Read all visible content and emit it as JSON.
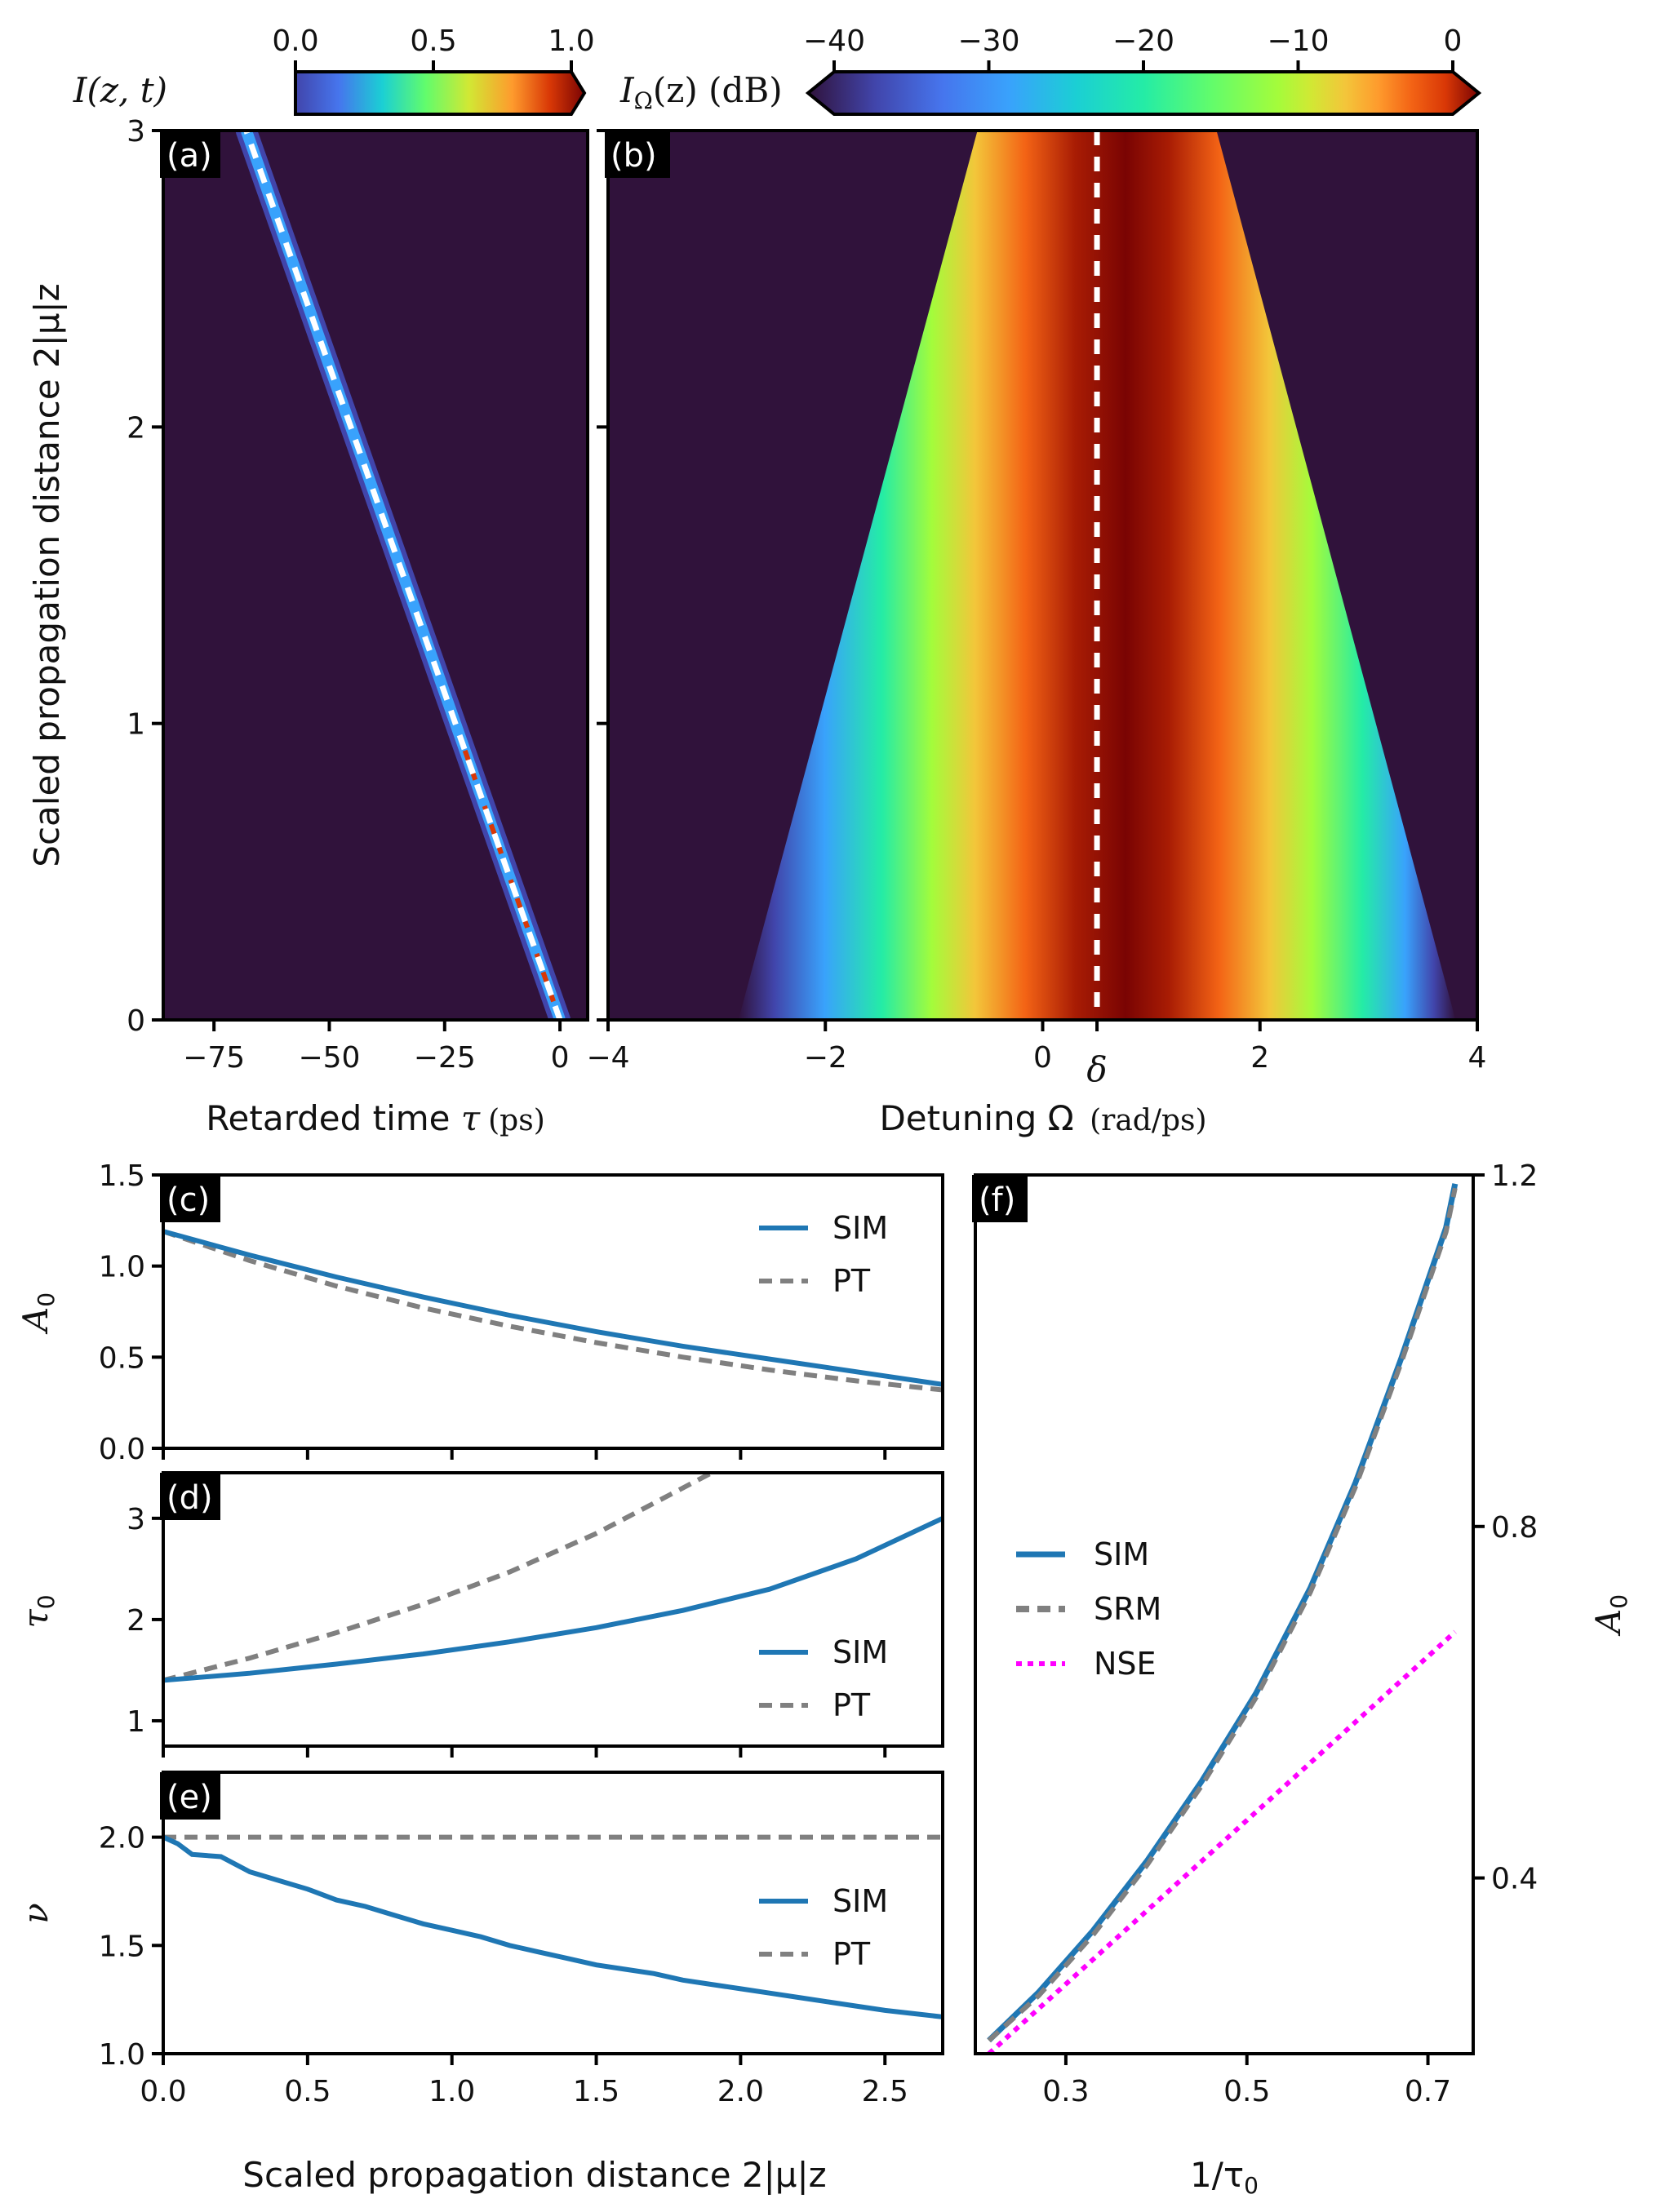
{
  "chart_data": [
    {
      "id": "a",
      "type": "heatmap",
      "panel_label": "(a)",
      "colorbar": {
        "label": "I(z, t)",
        "ticks": [
          "0.0",
          "0.5",
          "1.0"
        ],
        "range": [
          0,
          1
        ]
      },
      "xlabel_text": "Retarded time ",
      "xlabel_var": "τ",
      "xlabel_unit": "(ps)",
      "ylabel": "Scaled propagation distance 2|μ|z",
      "xlim": [
        -86,
        6
      ],
      "ylim": [
        0,
        3
      ],
      "xticks": [
        -75,
        -50,
        -25,
        0
      ],
      "xtick_labels": [
        "−75",
        "−50",
        "−25",
        "0"
      ],
      "yticks": [
        0,
        1,
        2,
        3
      ],
      "ytick_labels": [
        "0",
        "1",
        "2",
        "3"
      ],
      "pulse_track": {
        "z": [
          0,
          3
        ],
        "tau": [
          0,
          -68
        ]
      },
      "annotation": "white dashed line: pulse trajectory"
    },
    {
      "id": "b",
      "type": "heatmap",
      "panel_label": "(b)",
      "colorbar": {
        "label_main": "I",
        "label_sub": "Ω",
        "label_rest": "(z) (dB)",
        "ticks": [
          "−40",
          "−30",
          "−20",
          "−10",
          "0"
        ],
        "range": [
          -40,
          0
        ]
      },
      "xlabel_text": "Detuning Ω ",
      "xlabel_unit": "(rad/ps)",
      "xlim": [
        -4,
        4
      ],
      "ylim": [
        0,
        3
      ],
      "xticks": [
        -4,
        -2,
        0,
        2,
        4
      ],
      "xtick_labels": [
        "−4",
        "−2",
        "0",
        "2",
        "4"
      ],
      "delta": 0.5,
      "delta_label": "δ",
      "spectrum_edges": {
        "z": [
          0,
          3
        ],
        "left": [
          -2.8,
          -0.6
        ],
        "right": [
          3.8,
          1.6
        ]
      },
      "annotation": "white dashed line at Ω = δ"
    },
    {
      "id": "c",
      "type": "line",
      "panel_label": "(c)",
      "ylabel": "A",
      "ylabel_sub": "0",
      "xlim": [
        0,
        2.7
      ],
      "ylim": [
        0,
        1.5
      ],
      "yticks": [
        0,
        0.5,
        1.0,
        1.5
      ],
      "ytick_labels": [
        "0.0",
        "0.5",
        "1.0",
        "1.5"
      ],
      "series": [
        {
          "name": "SIM",
          "x": [
            0,
            0.3,
            0.6,
            0.9,
            1.2,
            1.5,
            1.8,
            2.1,
            2.4,
            2.7
          ],
          "y": [
            1.19,
            1.06,
            0.94,
            0.83,
            0.73,
            0.64,
            0.56,
            0.49,
            0.42,
            0.35
          ]
        },
        {
          "name": "PT",
          "x": [
            0,
            0.3,
            0.6,
            0.9,
            1.2,
            1.5,
            1.8,
            2.1,
            2.4,
            2.7
          ],
          "y": [
            1.19,
            1.03,
            0.89,
            0.77,
            0.67,
            0.58,
            0.5,
            0.43,
            0.37,
            0.32
          ]
        }
      ]
    },
    {
      "id": "d",
      "type": "line",
      "panel_label": "(d)",
      "ylabel": "τ",
      "ylabel_sub": "0",
      "xlim": [
        0,
        2.7
      ],
      "ylim": [
        0.75,
        3.45
      ],
      "yticks": [
        1,
        2,
        3
      ],
      "ytick_labels": [
        "1",
        "2",
        "3"
      ],
      "series": [
        {
          "name": "SIM",
          "x": [
            0,
            0.3,
            0.6,
            0.9,
            1.2,
            1.5,
            1.8,
            2.1,
            2.4,
            2.7
          ],
          "y": [
            1.4,
            1.47,
            1.56,
            1.66,
            1.78,
            1.92,
            2.09,
            2.3,
            2.6,
            3.0
          ]
        },
        {
          "name": "PT",
          "x": [
            0,
            0.3,
            0.6,
            0.9,
            1.2,
            1.5,
            1.8,
            1.9
          ],
          "y": [
            1.4,
            1.62,
            1.87,
            2.15,
            2.47,
            2.85,
            3.3,
            3.45
          ]
        }
      ]
    },
    {
      "id": "e",
      "type": "line",
      "panel_label": "(e)",
      "ylabel": "ν",
      "xlabel": "Scaled propagation distance 2|μ|z",
      "xlim": [
        0,
        2.7
      ],
      "ylim": [
        1.0,
        2.3
      ],
      "yticks": [
        1.0,
        1.5,
        2.0
      ],
      "ytick_labels": [
        "1.0",
        "1.5",
        "2.0"
      ],
      "xticks": [
        0,
        0.5,
        1.0,
        1.5,
        2.0,
        2.5
      ],
      "xtick_labels": [
        "0.0",
        "0.5",
        "1.0",
        "1.5",
        "2.0",
        "2.5"
      ],
      "series": [
        {
          "name": "SIM",
          "x": [
            0,
            0.05,
            0.1,
            0.2,
            0.3,
            0.4,
            0.5,
            0.6,
            0.7,
            0.8,
            0.9,
            1.0,
            1.1,
            1.2,
            1.3,
            1.4,
            1.5,
            1.6,
            1.7,
            1.8,
            1.9,
            2.0,
            2.1,
            2.2,
            2.3,
            2.4,
            2.5,
            2.6,
            2.7
          ],
          "y": [
            2.0,
            1.97,
            1.92,
            1.91,
            1.84,
            1.8,
            1.76,
            1.71,
            1.68,
            1.64,
            1.6,
            1.57,
            1.54,
            1.5,
            1.47,
            1.44,
            1.41,
            1.39,
            1.37,
            1.34,
            1.32,
            1.3,
            1.28,
            1.26,
            1.24,
            1.22,
            1.2,
            1.185,
            1.17
          ]
        },
        {
          "name": "PT",
          "x": [
            0,
            2.7
          ],
          "y": [
            2.0,
            2.0
          ]
        }
      ]
    },
    {
      "id": "f",
      "type": "line",
      "panel_label": "(f)",
      "xlabel": "1/τ",
      "xlabel_sub": "0",
      "ylabel": "A",
      "ylabel_sub": "0",
      "xlim": [
        0.2,
        0.75
      ],
      "ylim": [
        0.2,
        1.2
      ],
      "xticks": [
        0.3,
        0.5,
        0.7
      ],
      "xtick_labels": [
        "0.3",
        "0.5",
        "0.7"
      ],
      "yticks": [
        0.4,
        0.8,
        1.2
      ],
      "ytick_labels": [
        "0.4",
        "0.8",
        "1.2"
      ],
      "series": [
        {
          "name": "SIM",
          "x": [
            0.215,
            0.27,
            0.33,
            0.39,
            0.45,
            0.51,
            0.57,
            0.62,
            0.67,
            0.7,
            0.72,
            0.73
          ],
          "y": [
            0.215,
            0.27,
            0.34,
            0.42,
            0.51,
            0.61,
            0.73,
            0.85,
            0.99,
            1.08,
            1.14,
            1.19
          ]
        },
        {
          "name": "SRM",
          "x": [
            0.215,
            0.27,
            0.33,
            0.39,
            0.45,
            0.51,
            0.57,
            0.62,
            0.67,
            0.7,
            0.72,
            0.73
          ],
          "y": [
            0.215,
            0.266,
            0.335,
            0.415,
            0.505,
            0.605,
            0.725,
            0.845,
            0.985,
            1.075,
            1.135,
            1.185
          ]
        },
        {
          "name": "NSE",
          "x": [
            0.215,
            0.73
          ],
          "y": [
            0.2,
            0.68
          ]
        }
      ]
    }
  ],
  "colors": {
    "sim": "#1f77b4",
    "pt": "#808080",
    "nse": "#ff00ff",
    "background_map": "#30123b"
  }
}
